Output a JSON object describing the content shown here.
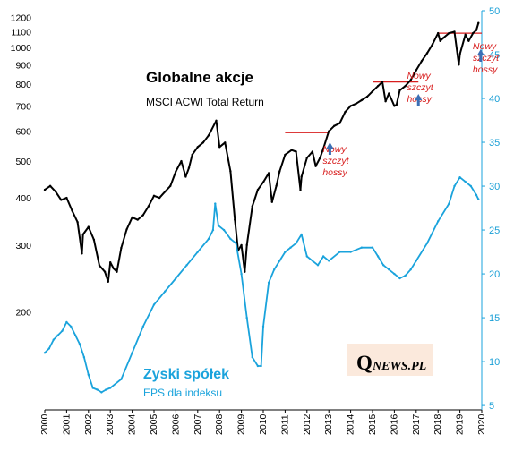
{
  "chart_data": {
    "type": "line",
    "title": "Globalne  akcje",
    "subtitle": "MSCI ACWI Total Return",
    "eps_title": "Zyski spółek",
    "eps_subtitle": "EPS dla indeksu",
    "x_ticks": [
      "2000",
      "2001",
      "2002",
      "2003",
      "2004",
      "2005",
      "2006",
      "2007",
      "2008",
      "2009",
      "2010",
      "2011",
      "2012",
      "2013",
      "2014",
      "2015",
      "2016",
      "2017",
      "2018",
      "2019",
      "2020"
    ],
    "y_left_ticks": [
      "1200",
      "1100",
      "1000",
      "900",
      "800",
      "700",
      "600",
      "500",
      "400",
      "300",
      "200"
    ],
    "y_right_ticks": [
      "50",
      "45",
      "40",
      "35",
      "30",
      "25",
      "20",
      "15",
      "10",
      "5"
    ],
    "y_left_scale": "log",
    "y_left_lim": [
      110,
      1250
    ],
    "y_right_lim": [
      4.5,
      50
    ],
    "x_lim": [
      2000,
      2020
    ],
    "series": [
      {
        "color": "#000000",
        "axis": "left",
        "x": [
          2000.0,
          2000.25,
          2000.5,
          2000.75,
          2001.0,
          2001.25,
          2001.5,
          2001.7,
          2001.75,
          2002.0,
          2002.25,
          2002.5,
          2002.75,
          2002.9,
          2003.0,
          2003.15,
          2003.3,
          2003.5,
          2003.75,
          2004.0,
          2004.25,
          2004.5,
          2004.75,
          2005.0,
          2005.25,
          2005.5,
          2005.75,
          2006.0,
          2006.25,
          2006.45,
          2006.6,
          2006.75,
          2007.0,
          2007.25,
          2007.5,
          2007.6,
          2007.85,
          2008.0,
          2008.25,
          2008.5,
          2008.7,
          2008.85,
          2009.0,
          2009.15,
          2009.25,
          2009.5,
          2009.75,
          2010.0,
          2010.25,
          2010.4,
          2010.6,
          2010.75,
          2011.0,
          2011.3,
          2011.5,
          2011.7,
          2011.75,
          2012.0,
          2012.25,
          2012.4,
          2012.6,
          2012.75,
          2013.0,
          2013.25,
          2013.5,
          2013.75,
          2014.0,
          2014.25,
          2014.5,
          2014.75,
          2015.0,
          2015.25,
          2015.45,
          2015.6,
          2015.75,
          2016.0,
          2016.1,
          2016.25,
          2016.5,
          2016.75,
          2017.0,
          2017.25,
          2017.5,
          2017.75,
          2018.0,
          2018.1,
          2018.25,
          2018.5,
          2018.75,
          2018.95,
          2019.0,
          2019.25,
          2019.4,
          2019.6,
          2019.75,
          2019.85
        ],
        "values": [
          420,
          430,
          415,
          395,
          400,
          370,
          345,
          285,
          320,
          335,
          310,
          265,
          255,
          240,
          270,
          260,
          255,
          295,
          330,
          355,
          350,
          360,
          380,
          405,
          400,
          415,
          430,
          470,
          500,
          455,
          480,
          520,
          545,
          560,
          585,
          600,
          640,
          545,
          560,
          470,
          350,
          290,
          300,
          255,
          300,
          380,
          420,
          440,
          465,
          390,
          430,
          470,
          520,
          535,
          530,
          420,
          455,
          510,
          530,
          485,
          510,
          540,
          600,
          620,
          630,
          675,
          700,
          710,
          725,
          740,
          765,
          790,
          810,
          720,
          755,
          700,
          705,
          770,
          790,
          820,
          870,
          920,
          965,
          1020,
          1090,
          1040,
          1060,
          1090,
          1100,
          900,
          960,
          1080,
          1040,
          1090,
          1110,
          1160
        ]
      },
      {
        "name": "Zyski spółek",
        "color": "#1aa3dc",
        "axis": "right",
        "x": [
          2000.0,
          2000.2,
          2000.4,
          2000.6,
          2000.8,
          2001.0,
          2001.2,
          2001.4,
          2001.6,
          2001.8,
          2002.0,
          2002.2,
          2002.4,
          2002.6,
          2002.8,
          2003.0,
          2003.5,
          2004.0,
          2004.5,
          2005.0,
          2005.5,
          2006.0,
          2006.5,
          2007.0,
          2007.5,
          2007.7,
          2007.8,
          2007.95,
          2008.2,
          2008.5,
          2008.75,
          2009.0,
          2009.25,
          2009.5,
          2009.75,
          2009.9,
          2010.0,
          2010.25,
          2010.5,
          2010.75,
          2011.0,
          2011.25,
          2011.5,
          2011.75,
          2012.0,
          2012.25,
          2012.5,
          2012.75,
          2013.0,
          2013.5,
          2014.0,
          2014.5,
          2015.0,
          2015.25,
          2015.5,
          2015.75,
          2016.0,
          2016.25,
          2016.5,
          2016.75,
          2017.0,
          2017.5,
          2018.0,
          2018.5,
          2018.75,
          2019.0,
          2019.25,
          2019.5,
          2019.75,
          2019.85
        ],
        "values": [
          11.0,
          11.5,
          12.5,
          13.0,
          13.5,
          14.5,
          14.0,
          13.0,
          12.0,
          10.5,
          8.5,
          7.0,
          6.8,
          6.5,
          6.8,
          7.0,
          8.0,
          11.0,
          14.0,
          16.5,
          18.0,
          19.5,
          21.0,
          22.5,
          24.0,
          25.0,
          28.0,
          25.5,
          25.0,
          24.0,
          23.5,
          20.0,
          15.0,
          10.5,
          9.5,
          9.5,
          14.0,
          19.0,
          20.5,
          21.5,
          22.5,
          23.0,
          23.5,
          24.5,
          22.0,
          21.5,
          21.0,
          22.0,
          21.5,
          22.5,
          22.5,
          23.0,
          23.0,
          22.0,
          21.0,
          20.5,
          20.0,
          19.5,
          19.8,
          20.5,
          21.5,
          23.5,
          26.0,
          28.0,
          30.0,
          31.0,
          30.5,
          30.0,
          29.0,
          28.5
        ]
      }
    ],
    "annotations": [
      {
        "lines": [
          "Nowy",
          "szczyt",
          "hossy"
        ],
        "x": 2012.8
      },
      {
        "lines": [
          "Nowy",
          "szczyt",
          "hossy"
        ],
        "x": 2016.7
      },
      {
        "lines": [
          "Nowy",
          "szczyt",
          "hossy"
        ],
        "x": 2019.75
      }
    ],
    "resistance_lines": [
      {
        "x0": 2011.0,
        "x1": 2013.0,
        "y": 595
      },
      {
        "x0": 2015.0,
        "x1": 2017.1,
        "y": 810
      },
      {
        "x0": 2018.0,
        "x1": 2020.0,
        "y": 1090
      }
    ],
    "colors": {
      "index": "#000000",
      "eps": "#1aa3dc",
      "annotation": "#d81e1e",
      "arrow": "#3b6fb5",
      "logo_bg": "#fbe9dc"
    }
  },
  "logo": {
    "q": "Q",
    "rest": "NEWS.PL"
  }
}
